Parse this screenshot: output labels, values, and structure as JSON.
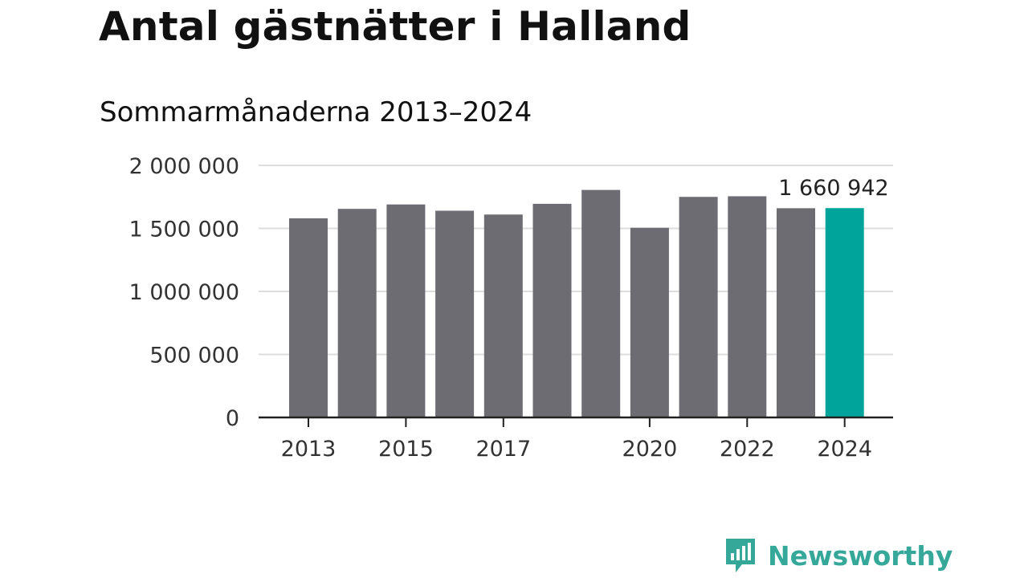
{
  "title": "Antal gästnätter i Halland",
  "subtitle": "Sommarmånaderna 2013–2024",
  "brand": {
    "name": "Newsworthy",
    "icon": "newsworthy-logo-icon",
    "color": "#36a89a"
  },
  "chart_data": {
    "type": "bar",
    "title": "Antal gästnätter i Halland",
    "subtitle": "Sommarmånaderna 2013–2024",
    "xlabel": "",
    "ylabel": "",
    "categories": [
      "2013",
      "2014",
      "2015",
      "2016",
      "2017",
      "2018",
      "2019",
      "2020",
      "2021",
      "2022",
      "2023",
      "2024"
    ],
    "x_tick_labels": [
      "2013",
      "2015",
      "2017",
      "2020",
      "2022",
      "2024"
    ],
    "values": [
      1580000,
      1655000,
      1690000,
      1640000,
      1610000,
      1695000,
      1805000,
      1505000,
      1750000,
      1755000,
      1660000,
      1660942
    ],
    "ylim": [
      0,
      2000000
    ],
    "y_ticks": [
      0,
      500000,
      1000000,
      1500000,
      2000000
    ],
    "y_tick_labels": [
      "0",
      "500 000",
      "1 000 000",
      "1 500 000",
      "2 000 000"
    ],
    "highlight_index": 11,
    "annotation": "1 660 942",
    "colors": {
      "bar": "#6d6c73",
      "highlight": "#00a49a",
      "grid": "#dddddd",
      "axis": "#222222"
    },
    "grid": true,
    "legend": "none"
  }
}
